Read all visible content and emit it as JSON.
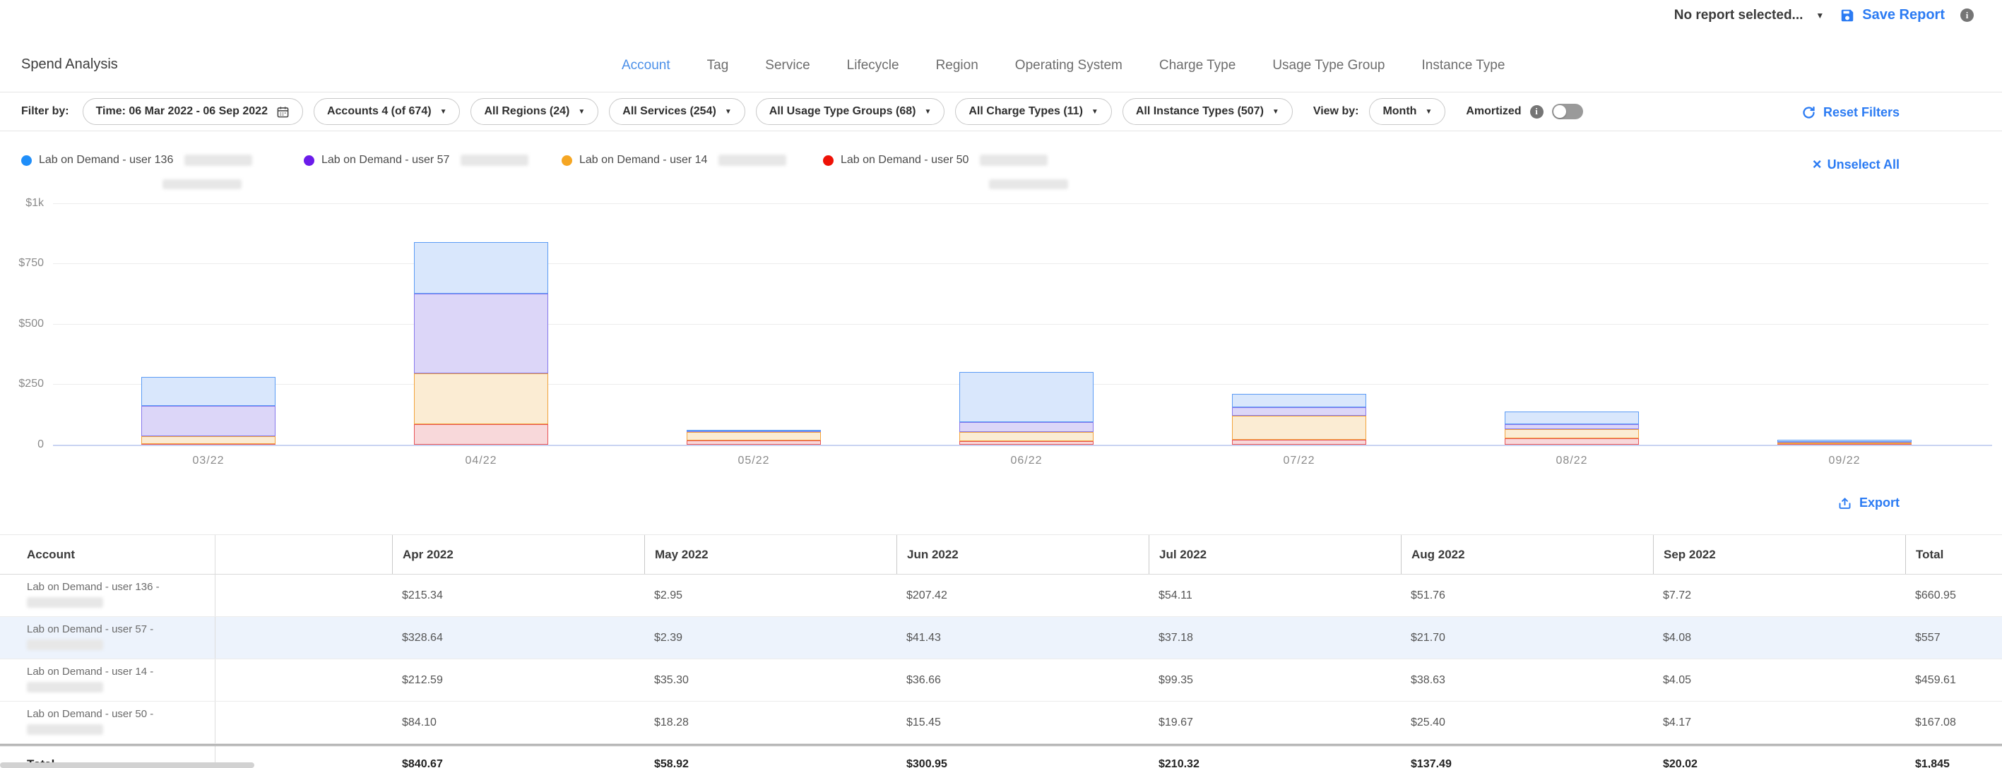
{
  "app": {
    "report_selector_label": "No report selected...",
    "save_report_label": "Save Report",
    "title": "Spend Analysis"
  },
  "tabs": [
    {
      "label": "Account",
      "active": true
    },
    {
      "label": "Tag",
      "active": false
    },
    {
      "label": "Service",
      "active": false
    },
    {
      "label": "Lifecycle",
      "active": false
    },
    {
      "label": "Region",
      "active": false
    },
    {
      "label": "Operating System",
      "active": false
    },
    {
      "label": "Charge Type",
      "active": false
    },
    {
      "label": "Usage Type Group",
      "active": false
    },
    {
      "label": "Instance Type",
      "active": false
    }
  ],
  "filters": {
    "filter_by_label": "Filter by:",
    "time_pill_label": "Time: 06 Mar 2022 - 06 Sep 2022",
    "pills": [
      {
        "label": "Accounts 4 (of 674)"
      },
      {
        "label": "All Regions (24)"
      },
      {
        "label": "All Services (254)"
      },
      {
        "label": "All Usage Type Groups (68)"
      },
      {
        "label": "All Charge Types (11)"
      },
      {
        "label": "All Instance Types (507)"
      }
    ],
    "view_by_label": "View by:",
    "view_by_value": "Month",
    "amortized_label": "Amortized",
    "amortized_on": false,
    "reset_label": "Reset Filters"
  },
  "legend": {
    "items": [
      {
        "label": "Lab on Demand - user 136",
        "color": "#1F8EF9",
        "redacted_inline": true,
        "redacted_second_line": true
      },
      {
        "label": "Lab on Demand - user 57",
        "color": "#6B1BEA",
        "redacted_inline": true,
        "redacted_second_line": false
      },
      {
        "label": "Lab on Demand - user 14",
        "color": "#F5A623",
        "redacted_inline": true,
        "redacted_second_line": false
      },
      {
        "label": "Lab on Demand - user 50",
        "color": "#EE1207",
        "redacted_inline": true,
        "redacted_second_line": true
      }
    ],
    "unselect_all_label": "Unselect All"
  },
  "chart_data": {
    "type": "bar",
    "stacked": true,
    "title": "",
    "xlabel": "",
    "ylabel": "",
    "ylim": [
      0,
      1000
    ],
    "grid": true,
    "legend_position": "top",
    "y_ticks": [
      "$1k",
      "$750",
      "$500",
      "$250",
      "0"
    ],
    "categories": [
      "03/22",
      "04/22",
      "05/22",
      "06/22",
      "07/22",
      "08/22",
      "09/22"
    ],
    "stack_order": "bottom to top",
    "estimated_categories": [
      "03/22"
    ],
    "series": [
      {
        "name": "Lab on Demand - user 50",
        "fill": "#F8D8DA",
        "border": "#E85355",
        "values": [
          3,
          84.1,
          18.28,
          15.45,
          19.67,
          25.4,
          4.17
        ]
      },
      {
        "name": "Lab on Demand - user 14",
        "fill": "#FBECD3",
        "border": "#F2A33C",
        "values": [
          33,
          212.59,
          35.3,
          36.66,
          99.35,
          38.63,
          4.05
        ]
      },
      {
        "name": "Lab on Demand - user 57",
        "fill": "#DCD6F8",
        "border": "#8678EC",
        "values": [
          124,
          328.64,
          2.39,
          41.43,
          37.18,
          21.7,
          4.08
        ]
      },
      {
        "name": "Lab on Demand - user 136",
        "fill": "#D9E7FC",
        "border": "#5B9BF5",
        "values": [
          120,
          215.34,
          2.95,
          207.42,
          54.11,
          51.76,
          7.72
        ]
      }
    ]
  },
  "export_label": "Export",
  "table": {
    "columns": [
      "Account",
      "Apr 2022",
      "May 2022",
      "Jun 2022",
      "Jul 2022",
      "Aug 2022",
      "Sep 2022",
      "Total"
    ],
    "rows": [
      {
        "account": "Lab on Demand - user 136 -",
        "redacted": true,
        "highlight": false,
        "values": [
          "$215.34",
          "$2.95",
          "$207.42",
          "$54.11",
          "$51.76",
          "$7.72",
          "$660.95"
        ]
      },
      {
        "account": "Lab on Demand - user 57 -",
        "redacted": true,
        "highlight": true,
        "values": [
          "$328.64",
          "$2.39",
          "$41.43",
          "$37.18",
          "$21.70",
          "$4.08",
          "$557"
        ]
      },
      {
        "account": "Lab on Demand - user 14 -",
        "redacted": true,
        "highlight": false,
        "values": [
          "$212.59",
          "$35.30",
          "$36.66",
          "$99.35",
          "$38.63",
          "$4.05",
          "$459.61"
        ]
      },
      {
        "account": "Lab on Demand - user 50 -",
        "redacted": true,
        "highlight": false,
        "values": [
          "$84.10",
          "$18.28",
          "$15.45",
          "$19.67",
          "$25.40",
          "$4.17",
          "$167.08"
        ]
      }
    ],
    "total_row": {
      "label": "Total",
      "values": [
        "$840.67",
        "$58.92",
        "$300.95",
        "$210.32",
        "$137.49",
        "$20.02",
        "$1,845"
      ]
    }
  }
}
